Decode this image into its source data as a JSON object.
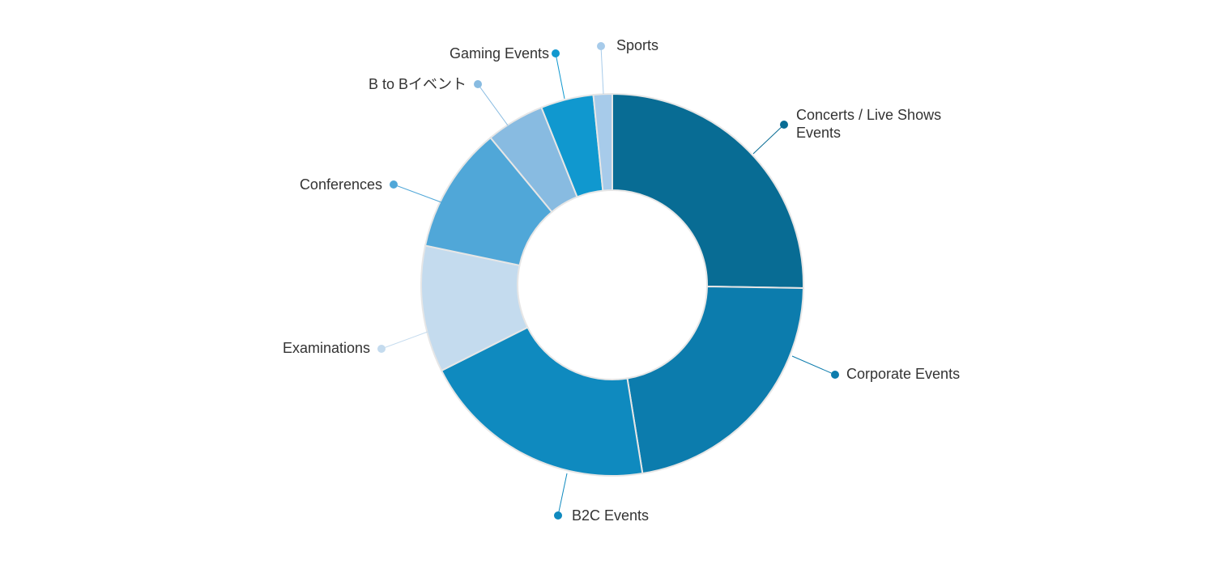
{
  "chart_data": {
    "type": "pie",
    "variant": "donut",
    "title": "",
    "legend": "none",
    "slices": [
      {
        "label": "Concerts / Live Shows Events",
        "label_lines": [
          "Concerts / Live Shows",
          "Events"
        ],
        "value": 25.5,
        "color": "#086c94"
      },
      {
        "label": "Corporate Events",
        "label_lines": [
          "Corporate Events"
        ],
        "value": 22.4,
        "color": "#0c7cad"
      },
      {
        "label": "B2C Events",
        "label_lines": [
          "B2C Events"
        ],
        "value": 20.3,
        "color": "#0f8abf"
      },
      {
        "label": "Examinations",
        "label_lines": [
          "Examinations"
        ],
        "value": 10.8,
        "color": "#c4dbee"
      },
      {
        "label": "Conferences",
        "label_lines": [
          "Conferences"
        ],
        "value": 10.8,
        "color": "#50a7d8"
      },
      {
        "label": "B to Bイベント",
        "label_lines": [
          "B to Bイベント"
        ],
        "value": 5.0,
        "color": "#88bbe1"
      },
      {
        "label": "Gaming Events",
        "label_lines": [
          "Gaming Events"
        ],
        "value": 4.5,
        "color": "#1098cf"
      },
      {
        "label": "Sports",
        "label_lines": [
          "Sports"
        ],
        "value": 1.6,
        "color": "#a7cbea"
      }
    ]
  }
}
